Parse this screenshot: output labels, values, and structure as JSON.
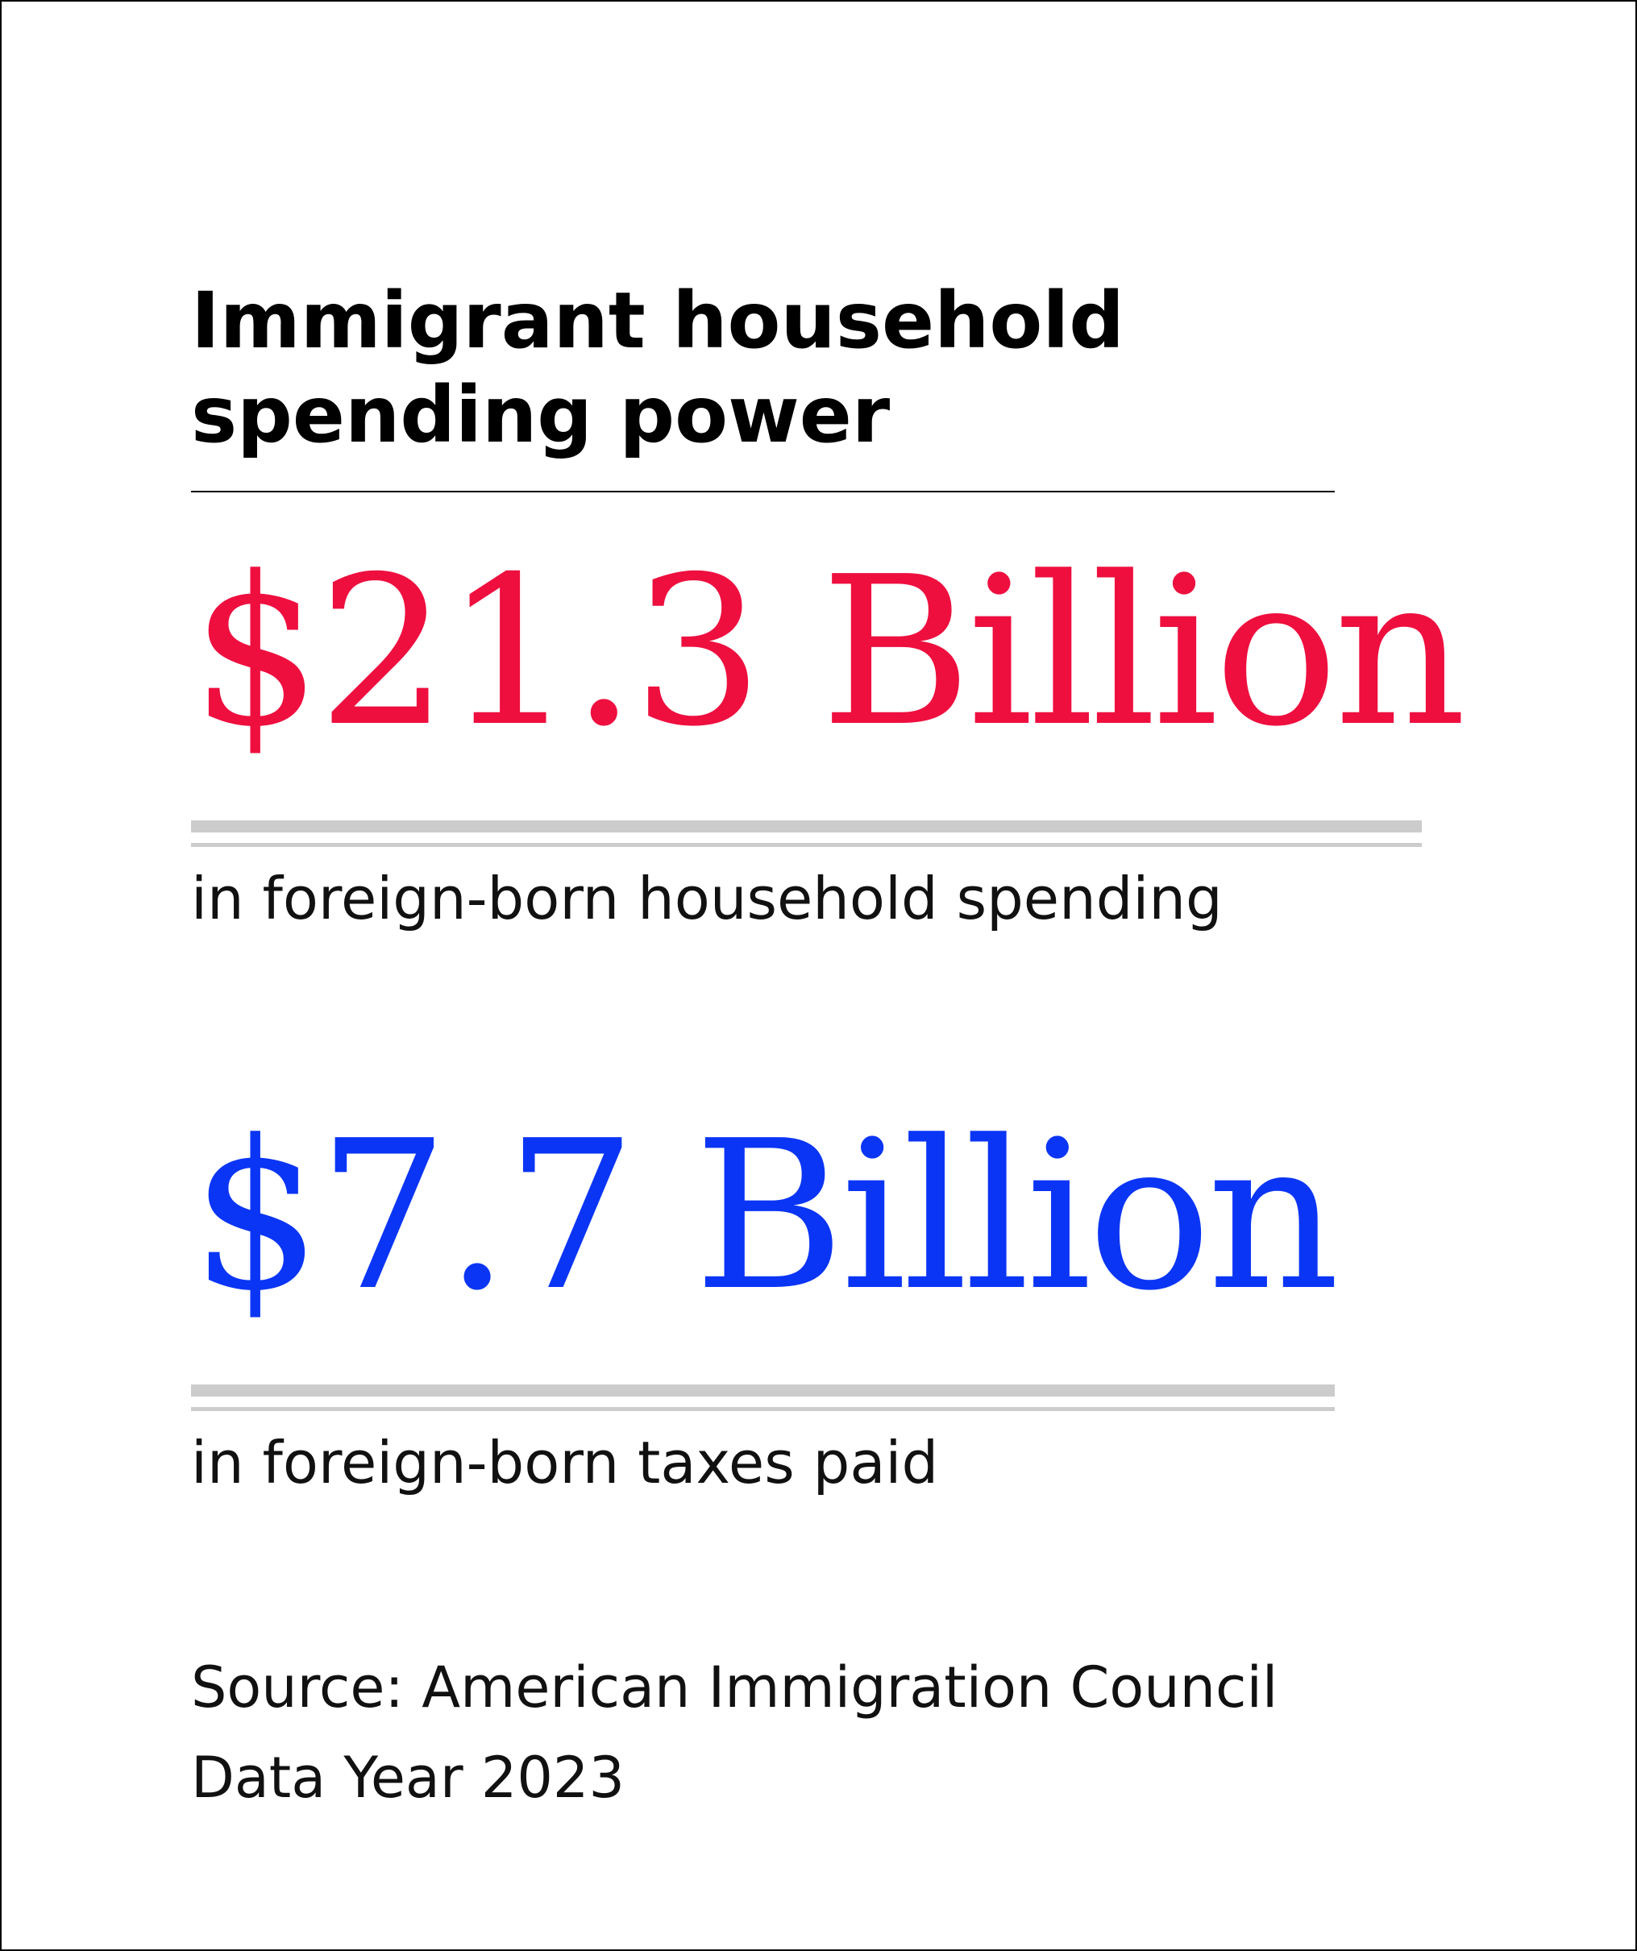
{
  "title": "Immigrant household spending power",
  "stats": [
    {
      "value": "$21.3 Billion",
      "description": "in foreign-born household spending",
      "color": "#ee0f3f"
    },
    {
      "value": "$7.7 Billion",
      "description": "in foreign-born taxes paid",
      "color": "#0b35f5"
    }
  ],
  "source_line": "Source: American Immigration Council",
  "data_year_line": "Data Year 2023",
  "colors": {
    "rule": "#cccccc",
    "text": "#111111"
  }
}
